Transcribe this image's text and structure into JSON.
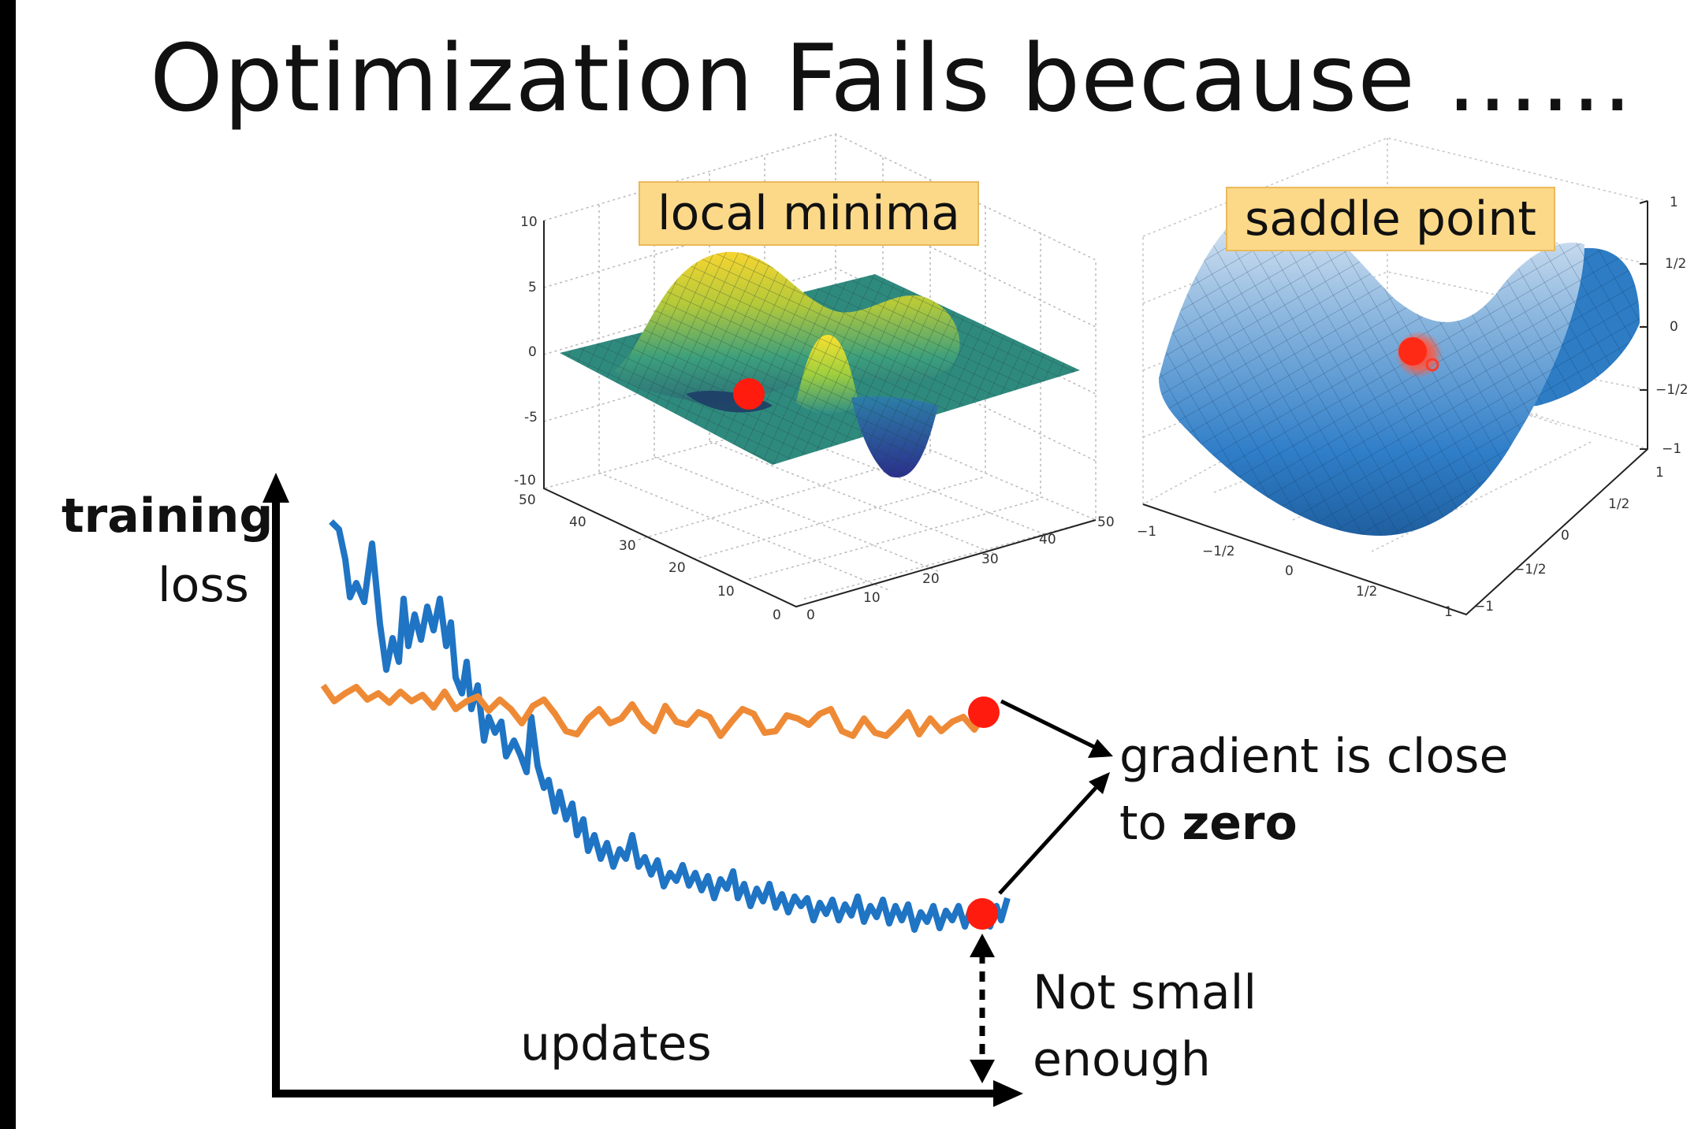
{
  "title": "Optimization Fails because ……",
  "panels": {
    "local_minima": {
      "label": "local minima",
      "z_ticks": [
        "10",
        "5",
        "0",
        "-5",
        "-10"
      ],
      "y_ticks": [
        "50",
        "40",
        "30",
        "20",
        "10",
        "0"
      ],
      "x_ticks": [
        "0",
        "10",
        "20",
        "30",
        "40",
        "50"
      ]
    },
    "saddle_point": {
      "label": "saddle point",
      "z_ticks": [
        "1",
        "1/2",
        "0",
        "−1/2",
        "−1"
      ],
      "x_ticks": [
        "−1",
        "−1/2",
        "0",
        "1/2",
        "1"
      ],
      "y_ticks": [
        "1",
        "1/2",
        "0",
        "−1/2",
        "−1"
      ]
    }
  },
  "plot": {
    "ylabel_bold": "training",
    "ylabel_rest": "loss",
    "xlabel": "updates",
    "colors": {
      "blue": "#1f74c4",
      "orange": "#ee8a36",
      "point": "#ff1b0e",
      "axis": "#000000"
    }
  },
  "annotations": {
    "gradient_line1": "gradient is close",
    "gradient_line2_pre": "to ",
    "gradient_line2_bold": "zero",
    "not_small_line1": "Not small",
    "not_small_line2": "enough"
  }
}
